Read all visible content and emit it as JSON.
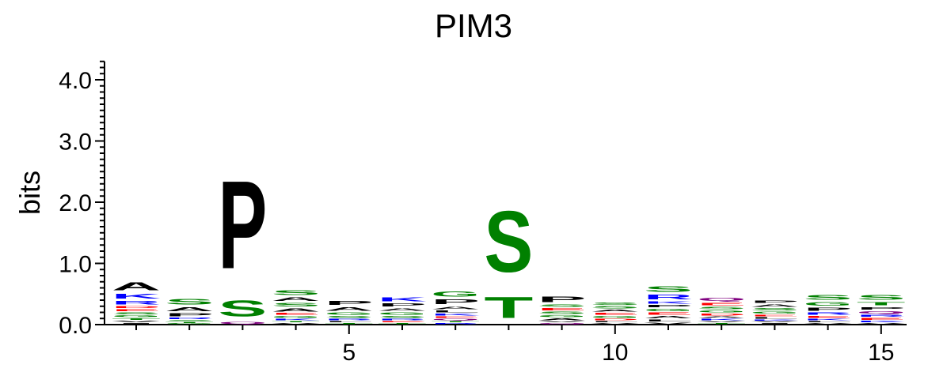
{
  "chart_data": {
    "type": "sequence-logo",
    "title": "PIM3",
    "ylabel": "bits",
    "ylim": [
      0,
      4.3
    ],
    "y_ticks": [
      0.0,
      1.0,
      2.0,
      3.0,
      4.0
    ],
    "y_tick_labels": [
      "0.0",
      "1.0",
      "2.0",
      "3.0",
      "4.0"
    ],
    "x_ticks": [
      5,
      10,
      15
    ],
    "x_tick_labels": [
      "5",
      "10",
      "15"
    ],
    "positions": [
      {
        "pos": 1,
        "letters": [
          {
            "l": "I",
            "h": 0.03
          },
          {
            "l": "V",
            "h": 0.04
          },
          {
            "l": "T",
            "h": 0.04
          },
          {
            "l": "G",
            "h": 0.05
          },
          {
            "l": "S",
            "h": 0.05
          },
          {
            "l": "E",
            "h": 0.05
          },
          {
            "l": "D",
            "h": 0.05
          },
          {
            "l": "R",
            "h": 0.09
          },
          {
            "l": "K",
            "h": 0.12
          },
          {
            "l": "A",
            "h": 0.21
          }
        ]
      },
      {
        "pos": 2,
        "letters": [
          {
            "l": "G",
            "h": 0.02
          },
          {
            "l": "T",
            "h": 0.03
          },
          {
            "l": "S",
            "h": 0.03
          },
          {
            "l": "R",
            "h": 0.04
          },
          {
            "l": "P",
            "h": 0.08
          },
          {
            "l": "A",
            "h": 0.1
          },
          {
            "l": "S",
            "h": 0.14
          }
        ]
      },
      {
        "pos": 3,
        "letters": [
          {
            "l": "Q",
            "h": 0.05
          },
          {
            "l": "S",
            "h": 0.42
          },
          {
            "l": "P",
            "h": 2.3
          }
        ]
      },
      {
        "pos": 4,
        "letters": [
          {
            "l": "V",
            "h": 0.03
          },
          {
            "l": "T",
            "h": 0.03
          },
          {
            "l": "K",
            "h": 0.04
          },
          {
            "l": "G",
            "h": 0.05
          },
          {
            "l": "E",
            "h": 0.05
          },
          {
            "l": "A",
            "h": 0.08
          },
          {
            "l": "S",
            "h": 0.09
          },
          {
            "l": "A",
            "h": 0.09
          },
          {
            "l": "S",
            "h": 0.12
          }
        ]
      },
      {
        "pos": 5,
        "letters": [
          {
            "l": "T",
            "h": 0.03
          },
          {
            "l": "L",
            "h": 0.03
          },
          {
            "l": "R",
            "h": 0.04
          },
          {
            "l": "S",
            "h": 0.05
          },
          {
            "l": "G",
            "h": 0.06
          },
          {
            "l": "A",
            "h": 0.09
          },
          {
            "l": "P",
            "h": 0.11
          }
        ]
      },
      {
        "pos": 6,
        "letters": [
          {
            "l": "T",
            "h": 0.03
          },
          {
            "l": "E",
            "h": 0.03
          },
          {
            "l": "R",
            "h": 0.04
          },
          {
            "l": "S",
            "h": 0.05
          },
          {
            "l": "G",
            "h": 0.06
          },
          {
            "l": "A",
            "h": 0.07
          },
          {
            "l": "P",
            "h": 0.08
          },
          {
            "l": "K",
            "h": 0.1
          }
        ]
      },
      {
        "pos": 7,
        "letters": [
          {
            "l": "R",
            "h": 0.03
          },
          {
            "l": "T",
            "h": 0.03
          },
          {
            "l": "Q",
            "h": 0.04
          },
          {
            "l": "E",
            "h": 0.04
          },
          {
            "l": "K",
            "h": 0.05
          },
          {
            "l": "L",
            "h": 0.05
          },
          {
            "l": "A",
            "h": 0.07
          },
          {
            "l": "P",
            "h": 0.12
          },
          {
            "l": "G",
            "h": 0.13
          }
        ]
      },
      {
        "pos": 8,
        "letters": [
          {
            "l": "T",
            "h": 0.55
          },
          {
            "l": "S",
            "h": 1.6
          }
        ]
      },
      {
        "pos": 9,
        "letters": [
          {
            "l": "Q",
            "h": 0.03
          },
          {
            "l": "V",
            "h": 0.03
          },
          {
            "l": "A",
            "h": 0.05
          },
          {
            "l": "G",
            "h": 0.05
          },
          {
            "l": "S",
            "h": 0.06
          },
          {
            "l": "E",
            "h": 0.06
          },
          {
            "l": "S",
            "h": 0.06
          },
          {
            "l": "P",
            "h": 0.15
          }
        ]
      },
      {
        "pos": 10,
        "letters": [
          {
            "l": "V",
            "h": 0.03
          },
          {
            "l": "L",
            "h": 0.03
          },
          {
            "l": "D",
            "h": 0.04
          },
          {
            "l": "G",
            "h": 0.05
          },
          {
            "l": "E",
            "h": 0.05
          },
          {
            "l": "A",
            "h": 0.05
          },
          {
            "l": "S",
            "h": 0.06
          },
          {
            "l": "S",
            "h": 0.07
          }
        ]
      },
      {
        "pos": 11,
        "letters": [
          {
            "l": "V",
            "h": 0.04
          },
          {
            "l": "L",
            "h": 0.05
          },
          {
            "l": "A",
            "h": 0.06
          },
          {
            "l": "E",
            "h": 0.06
          },
          {
            "l": "G",
            "h": 0.06
          },
          {
            "l": "P",
            "h": 0.06
          },
          {
            "l": "K",
            "h": 0.06
          },
          {
            "l": "R",
            "h": 0.12
          },
          {
            "l": "S",
            "h": 0.14
          }
        ]
      },
      {
        "pos": 12,
        "letters": [
          {
            "l": "T",
            "h": 0.03
          },
          {
            "l": "V",
            "h": 0.03
          },
          {
            "l": "K",
            "h": 0.04
          },
          {
            "l": "A",
            "h": 0.04
          },
          {
            "l": "D",
            "h": 0.05
          },
          {
            "l": "G",
            "h": 0.05
          },
          {
            "l": "S",
            "h": 0.06
          },
          {
            "l": "E",
            "h": 0.07
          },
          {
            "l": "Q",
            "h": 0.08
          }
        ]
      },
      {
        "pos": 13,
        "letters": [
          {
            "l": "I",
            "h": 0.03
          },
          {
            "l": "V",
            "h": 0.03
          },
          {
            "l": "K",
            "h": 0.03
          },
          {
            "l": "L",
            "h": 0.04
          },
          {
            "l": "E",
            "h": 0.04
          },
          {
            "l": "G",
            "h": 0.05
          },
          {
            "l": "S",
            "h": 0.06
          },
          {
            "l": "A",
            "h": 0.06
          },
          {
            "l": "P",
            "h": 0.07
          }
        ]
      },
      {
        "pos": 14,
        "letters": [
          {
            "l": "V",
            "h": 0.03
          },
          {
            "l": "L",
            "h": 0.03
          },
          {
            "l": "K",
            "h": 0.04
          },
          {
            "l": "E",
            "h": 0.05
          },
          {
            "l": "R",
            "h": 0.06
          },
          {
            "l": "P",
            "h": 0.08
          },
          {
            "l": "G",
            "h": 0.09
          },
          {
            "l": "S",
            "h": 0.12
          }
        ]
      },
      {
        "pos": 15,
        "letters": [
          {
            "l": "V",
            "h": 0.03
          },
          {
            "l": "K",
            "h": 0.04
          },
          {
            "l": "E",
            "h": 0.05
          },
          {
            "l": "R",
            "h": 0.05
          },
          {
            "l": "Q",
            "h": 0.06
          },
          {
            "l": "P",
            "h": 0.07
          },
          {
            "l": "T",
            "h": 0.08
          },
          {
            "l": "S",
            "h": 0.12
          }
        ]
      }
    ],
    "color_scheme": {
      "A": "#000000",
      "P": "#000000",
      "V": "#000000",
      "I": "#000000",
      "L": "#000000",
      "M": "#000000",
      "F": "#000000",
      "W": "#000000",
      "S": "#008000",
      "T": "#008000",
      "G": "#008000",
      "Y": "#008000",
      "C": "#008000",
      "N": "#800080",
      "Q": "#800080",
      "K": "#0000ff",
      "R": "#0000ff",
      "H": "#0000ff",
      "D": "#ff0000",
      "E": "#ff0000"
    }
  }
}
